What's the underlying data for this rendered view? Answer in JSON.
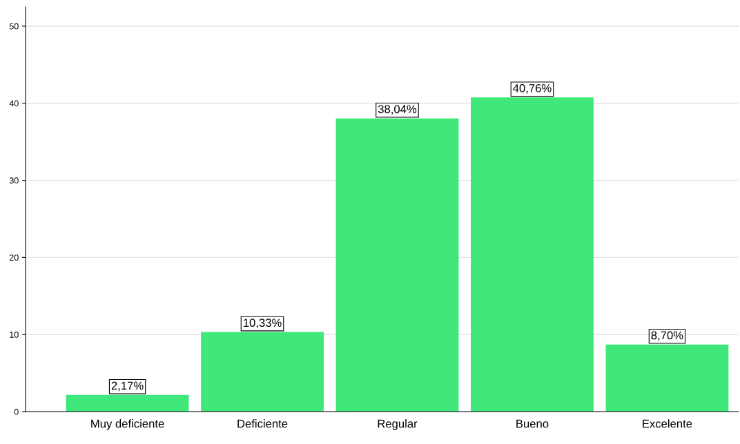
{
  "chart_data": {
    "type": "bar",
    "categories": [
      "Muy deficiente",
      "Deficiente",
      "Regular",
      "Bueno",
      "Excelente"
    ],
    "values": [
      2.17,
      10.33,
      38.04,
      40.76,
      8.7
    ],
    "value_labels": [
      "2,17%",
      "10,33%",
      "38,04%",
      "40,76%",
      "8,70%"
    ],
    "color": "#40e87c",
    "ylim": [
      0,
      52.5
    ],
    "yticks": [
      0,
      10,
      20,
      30,
      40,
      50
    ],
    "grid": "y",
    "legend": false
  }
}
